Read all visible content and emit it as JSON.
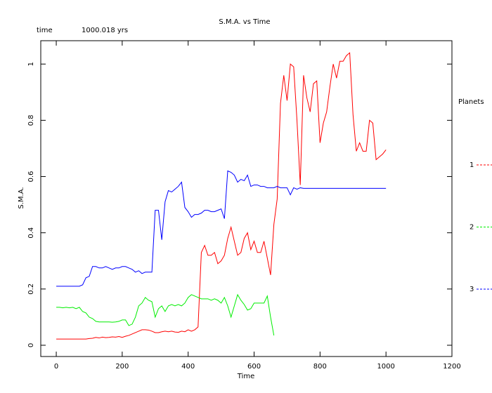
{
  "chart_data": {
    "type": "line",
    "title": "S.M.A. vs Time",
    "time_label": "time",
    "time_value": "1000.018 yrs",
    "x_label": "Time",
    "y_label": "S.M.A.",
    "legend_title": "Planets",
    "xlim": [
      -47,
      1200
    ],
    "ylim": [
      -0.04,
      1.083
    ],
    "xticks": [
      0,
      200,
      400,
      600,
      800,
      1000,
      1200
    ],
    "yticks": [
      0,
      0.2,
      0.4,
      0.6,
      0.8,
      1
    ],
    "x": [
      0,
      10,
      20,
      30,
      40,
      50,
      60,
      70,
      80,
      90,
      100,
      110,
      120,
      130,
      140,
      150,
      160,
      170,
      180,
      190,
      200,
      210,
      220,
      230,
      240,
      250,
      260,
      270,
      280,
      290,
      300,
      310,
      320,
      330,
      340,
      350,
      360,
      370,
      380,
      390,
      400,
      410,
      420,
      430,
      440,
      450,
      460,
      470,
      480,
      490,
      500,
      510,
      520,
      530,
      540,
      550,
      560,
      570,
      580,
      590,
      600,
      610,
      620,
      630,
      640,
      650,
      660,
      670,
      680,
      690,
      700,
      710,
      720,
      730,
      740,
      750,
      760,
      770,
      780,
      790,
      800,
      810,
      820,
      830,
      840,
      850,
      860,
      870,
      880,
      890,
      900,
      910,
      920,
      930,
      940,
      950,
      960,
      970,
      980,
      990,
      1000
    ],
    "series": [
      {
        "name": "1",
        "color": "#ff0000",
        "values": [
          0.022,
          0.022,
          0.022,
          0.022,
          0.022,
          0.022,
          0.022,
          0.022,
          0.022,
          0.022,
          0.024,
          0.025,
          0.028,
          0.026,
          0.029,
          0.027,
          0.028,
          0.03,
          0.029,
          0.031,
          0.028,
          0.032,
          0.035,
          0.04,
          0.045,
          0.05,
          0.055,
          0.055,
          0.054,
          0.05,
          0.045,
          0.045,
          0.048,
          0.05,
          0.048,
          0.05,
          0.047,
          0.046,
          0.05,
          0.048,
          0.055,
          0.05,
          0.055,
          0.065,
          0.33,
          0.355,
          0.32,
          0.32,
          0.33,
          0.29,
          0.3,
          0.32,
          0.38,
          0.42,
          0.37,
          0.32,
          0.33,
          0.38,
          0.4,
          0.34,
          0.37,
          0.33,
          0.33,
          0.37,
          0.31,
          0.25,
          0.43,
          0.52,
          0.86,
          0.96,
          0.87,
          1.0,
          0.99,
          0.8,
          0.57,
          0.96,
          0.88,
          0.83,
          0.93,
          0.94,
          0.72,
          0.79,
          0.83,
          0.92,
          1.0,
          0.95,
          1.01,
          1.01,
          1.03,
          1.04,
          0.82,
          0.69,
          0.72,
          0.69,
          0.69,
          0.8,
          0.79,
          0.66,
          0.67,
          0.68,
          0.695
        ]
      },
      {
        "name": "2",
        "color": "#00ee00",
        "values": [
          0.135,
          0.135,
          0.133,
          0.135,
          0.133,
          0.135,
          0.13,
          0.135,
          0.12,
          0.115,
          0.1,
          0.095,
          0.085,
          0.083,
          0.083,
          0.083,
          0.083,
          0.082,
          0.083,
          0.085,
          0.09,
          0.09,
          0.07,
          0.075,
          0.1,
          0.14,
          0.15,
          0.17,
          0.16,
          0.155,
          0.1,
          0.13,
          0.14,
          0.12,
          0.14,
          0.145,
          0.14,
          0.145,
          0.14,
          0.15,
          0.17,
          0.18,
          0.175,
          0.17,
          0.165,
          0.165,
          0.165,
          0.16,
          0.165,
          0.16,
          0.15,
          0.17,
          0.14,
          0.1,
          0.14,
          0.18,
          0.16,
          0.145,
          0.125,
          0.13,
          0.15,
          0.15,
          0.15,
          0.15,
          0.175,
          0.1,
          0.035,
          null,
          null,
          null,
          null,
          null,
          null,
          null,
          null,
          null,
          null,
          null,
          null,
          null,
          null,
          null,
          null,
          null,
          null,
          null,
          null,
          null,
          null,
          null,
          null,
          null,
          null,
          null,
          null,
          null,
          null,
          null,
          null,
          null,
          null
        ]
      },
      {
        "name": "3",
        "color": "#0000ff",
        "values": [
          0.21,
          0.21,
          0.21,
          0.21,
          0.21,
          0.21,
          0.21,
          0.21,
          0.215,
          0.24,
          0.245,
          0.28,
          0.28,
          0.275,
          0.275,
          0.28,
          0.275,
          0.27,
          0.275,
          0.275,
          0.28,
          0.28,
          0.275,
          0.27,
          0.26,
          0.265,
          0.255,
          0.26,
          0.26,
          0.26,
          0.48,
          0.48,
          0.375,
          0.51,
          0.55,
          0.545,
          0.555,
          0.565,
          0.58,
          0.49,
          0.475,
          0.455,
          0.465,
          0.465,
          0.47,
          0.48,
          0.48,
          0.475,
          0.475,
          0.48,
          0.485,
          0.45,
          0.62,
          0.615,
          0.605,
          0.58,
          0.59,
          0.585,
          0.605,
          0.565,
          0.57,
          0.57,
          0.565,
          0.565,
          0.56,
          0.56,
          0.56,
          0.565,
          0.56,
          0.56,
          0.56,
          0.535,
          0.56,
          0.555,
          0.56,
          0.558,
          0.558,
          0.558,
          0.558,
          0.558,
          0.558,
          0.558,
          0.558,
          0.558,
          0.558,
          0.558,
          0.558,
          0.558,
          0.558,
          0.558,
          0.558,
          0.558,
          0.558,
          0.558,
          0.558,
          0.558,
          0.558,
          0.558,
          0.558,
          0.558,
          0.558
        ]
      }
    ]
  }
}
